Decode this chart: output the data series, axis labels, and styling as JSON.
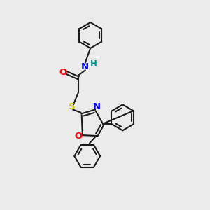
{
  "bg_color": "#ebebeb",
  "bond_color": "#1a1a1a",
  "N_color": "#0000ff",
  "O_color": "#ff0000",
  "S_color": "#cccc00",
  "H_color": "#008b8b",
  "line_width": 1.5,
  "font_size": 8.5,
  "fig_size": [
    3.0,
    3.0
  ],
  "dpi": 100,
  "xlim": [
    0,
    10
  ],
  "ylim": [
    0,
    10
  ]
}
